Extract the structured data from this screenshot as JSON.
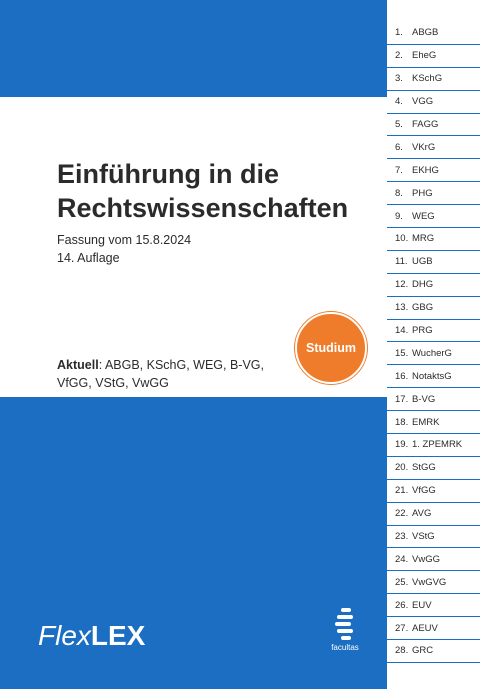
{
  "title_lines": [
    "Einführung in die",
    "Rechtswissenschaften"
  ],
  "edition_line1": "Fassung vom 15.8.2024",
  "edition_line2": "14. Auflage",
  "aktuell_label": "Aktuell",
  "aktuell_text": ": ABGB, KSchG, WEG, B-VG, VfGG, VStG, VwGG",
  "badge": "Studium",
  "brand_flex": "Flex",
  "brand_lex": "LEX",
  "publisher": "facultas",
  "colors": {
    "primary_blue": "#1b6ec2",
    "badge_orange": "#ee7c2b"
  },
  "tabs": [
    {
      "num": "1.",
      "label": "ABGB"
    },
    {
      "num": "2.",
      "label": "EheG"
    },
    {
      "num": "3.",
      "label": "KSchG"
    },
    {
      "num": "4.",
      "label": "VGG"
    },
    {
      "num": "5.",
      "label": "FAGG"
    },
    {
      "num": "6.",
      "label": "VKrG"
    },
    {
      "num": "7.",
      "label": "EKHG"
    },
    {
      "num": "8.",
      "label": "PHG"
    },
    {
      "num": "9.",
      "label": "WEG"
    },
    {
      "num": "10.",
      "label": "MRG"
    },
    {
      "num": "11.",
      "label": "UGB"
    },
    {
      "num": "12.",
      "label": "DHG"
    },
    {
      "num": "13.",
      "label": "GBG"
    },
    {
      "num": "14.",
      "label": "PRG"
    },
    {
      "num": "15.",
      "label": "WucherG"
    },
    {
      "num": "16.",
      "label": "NotaktsG"
    },
    {
      "num": "17.",
      "label": "B-VG"
    },
    {
      "num": "18.",
      "label": "EMRK"
    },
    {
      "num": "19.",
      "label": "1. ZPEMRK"
    },
    {
      "num": "20.",
      "label": "StGG"
    },
    {
      "num": "21.",
      "label": "VfGG"
    },
    {
      "num": "22.",
      "label": "AVG"
    },
    {
      "num": "23.",
      "label": "VStG"
    },
    {
      "num": "24.",
      "label": "VwGG"
    },
    {
      "num": "25.",
      "label": "VwGVG"
    },
    {
      "num": "26.",
      "label": "EUV"
    },
    {
      "num": "27.",
      "label": "AEUV"
    },
    {
      "num": "28.",
      "label": "GRC"
    }
  ]
}
